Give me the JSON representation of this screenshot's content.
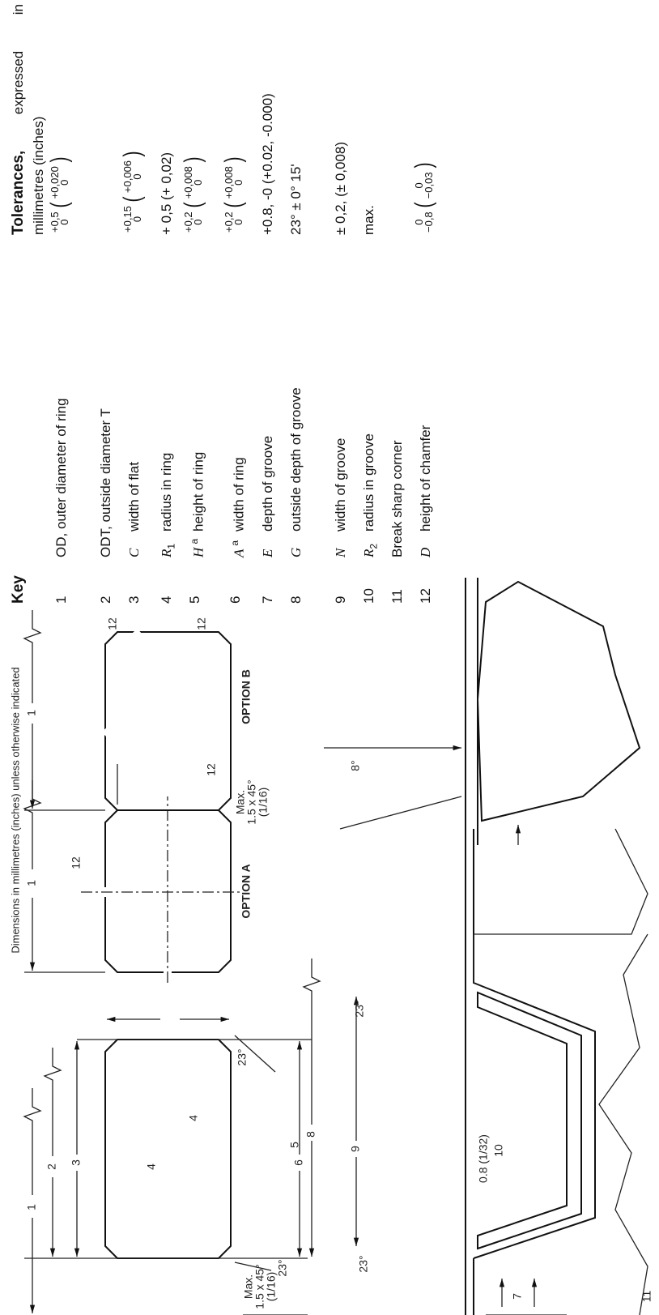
{
  "header": {
    "title": "Dimensions in millimetres (inches) unless otherwise indicated"
  },
  "figure": {
    "labels": [
      "1",
      "2",
      "3",
      "4",
      "4",
      "5",
      "6",
      "23°",
      "23°",
      "Max.",
      "1.5 x 45°",
      "(1/16)",
      "1",
      "12",
      "12",
      "OPTION A",
      "1",
      "12",
      "12",
      "OPTION B",
      "Max.",
      "1.5 x 45°",
      "(1/16)",
      "8°",
      "8",
      "9",
      "23°",
      "23°",
      "0.8 (1/32)",
      "10",
      "7",
      "11"
    ]
  },
  "key": {
    "title": "Key",
    "tolerances_heading": "Tolerances,",
    "tolerances_note": "expressed in millimetres (inches)",
    "rows": [
      {
        "number": 1,
        "description": "OD, outer diameter of ring",
        "tolerance": {
          "mm": [
            "+0,5",
            "0"
          ],
          "in": [
            "+0,020",
            "0"
          ]
        }
      },
      {
        "number": 2,
        "description": "ODT, outside diameter T"
      },
      {
        "number": 3,
        "symbol": "C",
        "description": "width of flat",
        "tolerance": {
          "mm": [
            "+0,15",
            "0"
          ],
          "in": [
            "+0,006",
            "0"
          ]
        }
      },
      {
        "number": 4,
        "symbol": "R",
        "sub": "1",
        "description": "radius in ring",
        "tolerance": {
          "text": "+ 0,5 (+ 0,02)"
        }
      },
      {
        "number": 5,
        "symbol": "H",
        "sup": "a",
        "description": "height of ring",
        "tolerance": {
          "mm": [
            "+0,2",
            "0"
          ],
          "in": [
            "+0,008",
            "0"
          ]
        }
      },
      {
        "number": 6,
        "symbol": "A",
        "sup": "a",
        "description": "width of ring",
        "tolerance": {
          "mm": [
            "+0,2",
            "0"
          ],
          "in": [
            "+0,008",
            "0"
          ]
        }
      },
      {
        "number": 7,
        "symbol": "E",
        "description": "depth of groove",
        "tolerance": {
          "text": "+0.8, -0 (+0.02, -0.000)"
        }
      },
      {
        "number": 8,
        "symbol": "G",
        "description": "outside depth of groove",
        "tolerance": {
          "text": "23° ± 0° 15'"
        }
      },
      {
        "number": 9,
        "symbol": "N",
        "description": "width of groove",
        "tolerance": {
          "text": "± 0,2, (± 0,008)"
        }
      },
      {
        "number": 10,
        "symbol": "R",
        "sub": "2",
        "description": "radius in groove",
        "tolerance": {
          "text": "max."
        }
      },
      {
        "number": 11,
        "description": "Break sharp corner"
      },
      {
        "number": 12,
        "symbol": "D",
        "description": "height of chamfer",
        "tolerance": {
          "mm": [
            "0",
            "−0,8"
          ],
          "in": [
            "0",
            "−0,03"
          ]
        }
      }
    ]
  }
}
